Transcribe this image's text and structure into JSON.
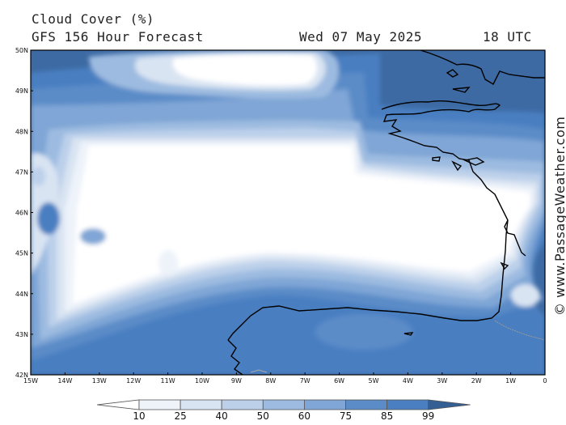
{
  "header": {
    "title": "Cloud Cover (%)",
    "subtitle": "GFS 156 Hour Forecast",
    "date": "Wed 07 May 2025",
    "time": "18 UTC"
  },
  "credit": "© www.PassageWeather.com",
  "map": {
    "lon_range": [
      -15,
      0
    ],
    "lat_range": [
      42,
      50
    ],
    "lon_ticks": [
      "15W",
      "14W",
      "13W",
      "12W",
      "11W",
      "10W",
      "9W",
      "8W",
      "7W",
      "6W",
      "5W",
      "4W",
      "3W",
      "2W",
      "1W",
      "0"
    ],
    "lat_ticks": [
      "50N",
      "49N",
      "48N",
      "47N",
      "46N",
      "45N",
      "44N",
      "43N",
      "42N"
    ]
  },
  "colorbar": {
    "levels": [
      "10",
      "25",
      "40",
      "50",
      "60",
      "75",
      "85",
      "99"
    ],
    "colors": [
      "#ffffff",
      "#eef3fa",
      "#d9e4f2",
      "#bcd0ea",
      "#9dbbe0",
      "#7fa6d6",
      "#5c8cc8",
      "#4a7fc1",
      "#3b6fae",
      "#345f95"
    ]
  }
}
